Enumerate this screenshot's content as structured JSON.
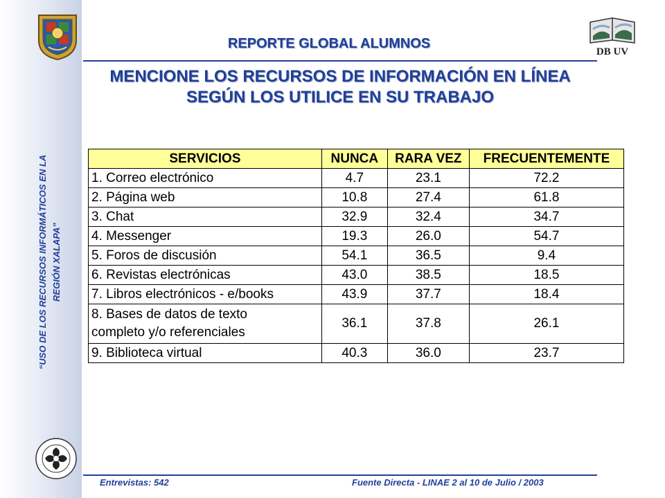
{
  "header": {
    "title": "REPORTE GLOBAL ALUMNOS",
    "subtitle_line1": "MENCIONE LOS RECURSOS DE INFORMACIÓN EN LÍNEA",
    "subtitle_line2": "SEGÚN LOS UTILICE EN SU TRABAJO"
  },
  "sidebar": {
    "caption_line1": "“USO DE LOS RECURSOS INFORMÁTICOS EN LA",
    "caption_line2": "REGIÓN XALAPA”"
  },
  "logos": {
    "left_logo": "universidad-veracruzana-crest",
    "right_logo_text": "DB UV",
    "bottom_logo": "circular-seal"
  },
  "table": {
    "headers": [
      "SERVICIOS",
      "NUNCA",
      "RARA VEZ",
      "FRECUENTEMENTE"
    ],
    "rows": [
      {
        "service": "1. Correo electrónico",
        "nunca": "4.7",
        "rara_vez": "23.1",
        "frecuentemente": "72.2"
      },
      {
        "service": "2. Página web",
        "nunca": "10.8",
        "rara_vez": "27.4",
        "frecuentemente": "61.8"
      },
      {
        "service": "3. Chat",
        "nunca": "32.9",
        "rara_vez": "32.4",
        "frecuentemente": "34.7"
      },
      {
        "service": "4. Messenger",
        "nunca": "19.3",
        "rara_vez": "26.0",
        "frecuentemente": "54.7"
      },
      {
        "service": "5. Foros de discusión",
        "nunca": "54.1",
        "rara_vez": "36.5",
        "frecuentemente": "9.4"
      },
      {
        "service": "6. Revistas electrónicas",
        "nunca": "43.0",
        "rara_vez": "38.5",
        "frecuentemente": "18.5"
      },
      {
        "service": "7. Libros electrónicos - e/books",
        "nunca": "43.9",
        "rara_vez": "37.7",
        "frecuentemente": "18.4"
      },
      {
        "service_line1": "8. Bases de datos de texto",
        "service_line2": "completo y/o referenciales",
        "nunca": "36.1",
        "rara_vez": "37.8",
        "frecuentemente": "26.1"
      },
      {
        "service": "9. Biblioteca virtual",
        "nunca": "40.3",
        "rara_vez": "36.0",
        "frecuentemente": "23.7"
      }
    ]
  },
  "footer": {
    "left": "Entrevistas: 542",
    "right": "Fuente Directa -  LINAE 2 al 10  de Julio / 2003"
  },
  "colors": {
    "accent": "#1f3f99",
    "header_fill": "#ffff99"
  }
}
